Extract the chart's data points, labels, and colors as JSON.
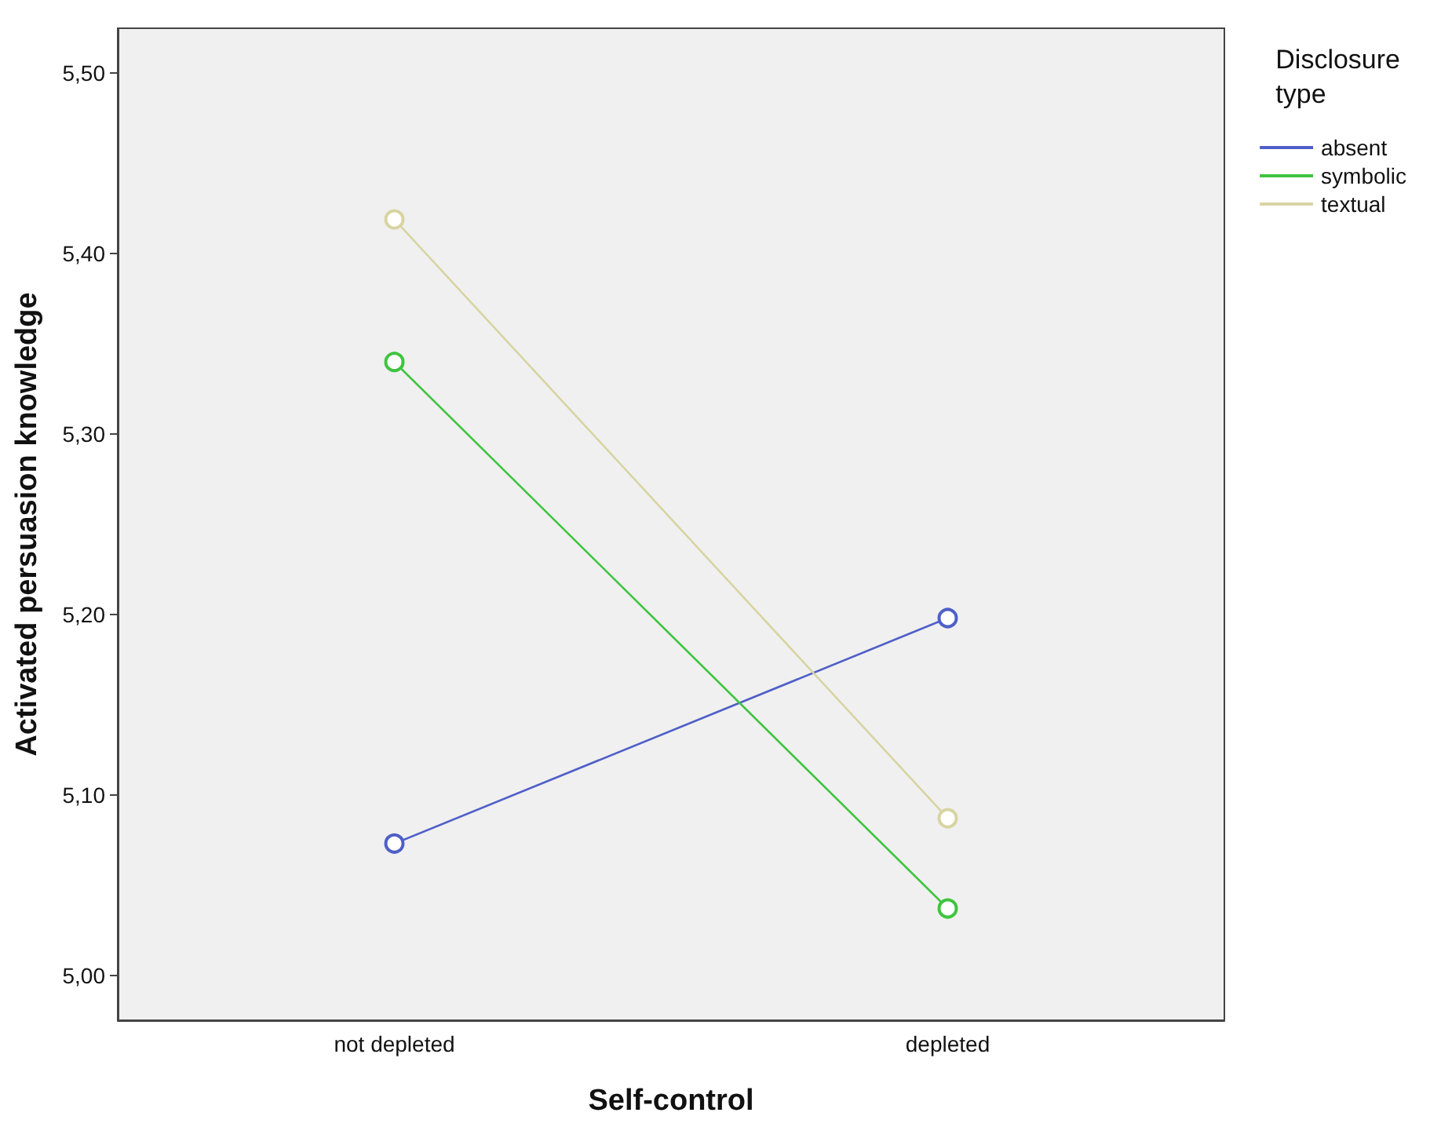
{
  "chart_data": {
    "type": "line",
    "xlabel": "Self-control",
    "ylabel": "Activated persuasion knowledge",
    "legend_title": "Disclosure\ntype",
    "categories": [
      "not depleted",
      "depleted"
    ],
    "series": [
      {
        "name": "absent",
        "color": "#4f5fc8",
        "values": [
          5.073,
          5.198
        ]
      },
      {
        "name": "symbolic",
        "color": "#3fc43f",
        "values": [
          5.34,
          5.037
        ]
      },
      {
        "name": "textual",
        "color": "#d8d4a2",
        "values": [
          5.419,
          5.087
        ]
      }
    ],
    "ylim": [
      4.975,
      5.525
    ],
    "yticks": [
      {
        "value": 5.0,
        "label": "5,00"
      },
      {
        "value": 5.1,
        "label": "5,10"
      },
      {
        "value": 5.2,
        "label": "5,20"
      },
      {
        "value": 5.3,
        "label": "5,30"
      },
      {
        "value": 5.4,
        "label": "5,40"
      },
      {
        "value": 5.5,
        "label": "5,50"
      }
    ],
    "grid": false,
    "legend": "top right",
    "marker": "circle",
    "line_style": "solid"
  }
}
